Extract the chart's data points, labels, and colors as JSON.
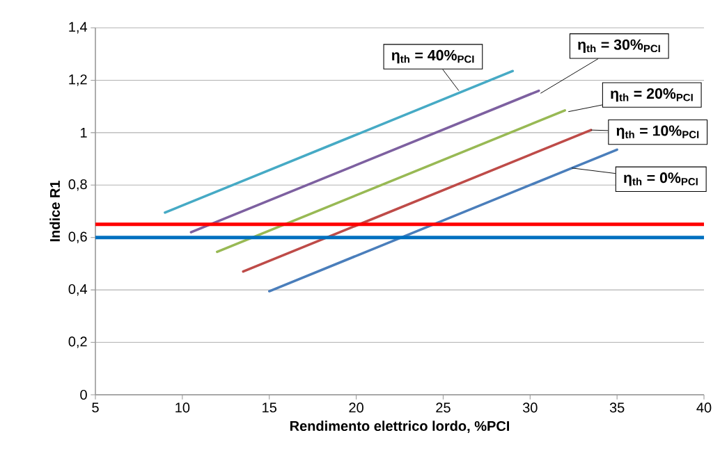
{
  "chart_data": {
    "type": "line",
    "xlabel": "Rendimento elettrico lordo, %PCI",
    "ylabel": "Indice R1",
    "xlim": [
      5,
      40
    ],
    "xticks": [
      5,
      10,
      15,
      20,
      25,
      30,
      35,
      40
    ],
    "ylim": [
      0,
      1.4
    ],
    "yticks": [
      0,
      {
        "value": 0.2,
        "label": "0,2"
      },
      {
        "value": 0.4,
        "label": "0,4"
      },
      {
        "value": 0.6,
        "label": "0,6"
      },
      {
        "value": 0.8,
        "label": "0,8"
      },
      1,
      {
        "value": 1.2,
        "label": "1,2"
      },
      {
        "value": 1.4,
        "label": "1,4"
      }
    ],
    "grid": "y",
    "series": [
      {
        "color": "#4a7ebb",
        "x": [
          15,
          35
        ],
        "values": [
          0.395,
          0.935
        ]
      },
      {
        "color": "#be4b48",
        "x": [
          13.5,
          33.5
        ],
        "values": [
          0.47,
          1.01
        ]
      },
      {
        "color": "#98b954",
        "x": [
          12,
          32
        ],
        "values": [
          0.545,
          1.085
        ]
      },
      {
        "color": "#7d60a0",
        "x": [
          10.5,
          30.5
        ],
        "values": [
          0.62,
          1.16
        ]
      },
      {
        "color": "#46aac5",
        "x": [
          9,
          29
        ],
        "values": [
          0.695,
          1.235
        ]
      }
    ],
    "ref_lines": [
      {
        "axis": "y",
        "value": 0.65,
        "color": "#ff0000"
      },
      {
        "axis": "y",
        "value": 0.6,
        "color": "#0070c0"
      }
    ],
    "annotations": [
      {
        "text": "η$_{th}$ = 40%$_{PCI}$",
        "x": 25.9,
        "y": 1.16
      },
      {
        "text": "η$_{th}$ = 30%$_{PCI}$",
        "x": 30.6,
        "y": 1.15
      },
      {
        "text": "η$_{th}$ = 20%$_{PCI}$",
        "x": 32.2,
        "y": 1.08
      },
      {
        "text": "η$_{th}$ = 10%$_{PCI}$",
        "x": 33.5,
        "y": 1.01
      },
      {
        "text": "η$_{th}$ = 0%$_{PCI}$",
        "x": 32.4,
        "y": 0.865
      }
    ]
  }
}
